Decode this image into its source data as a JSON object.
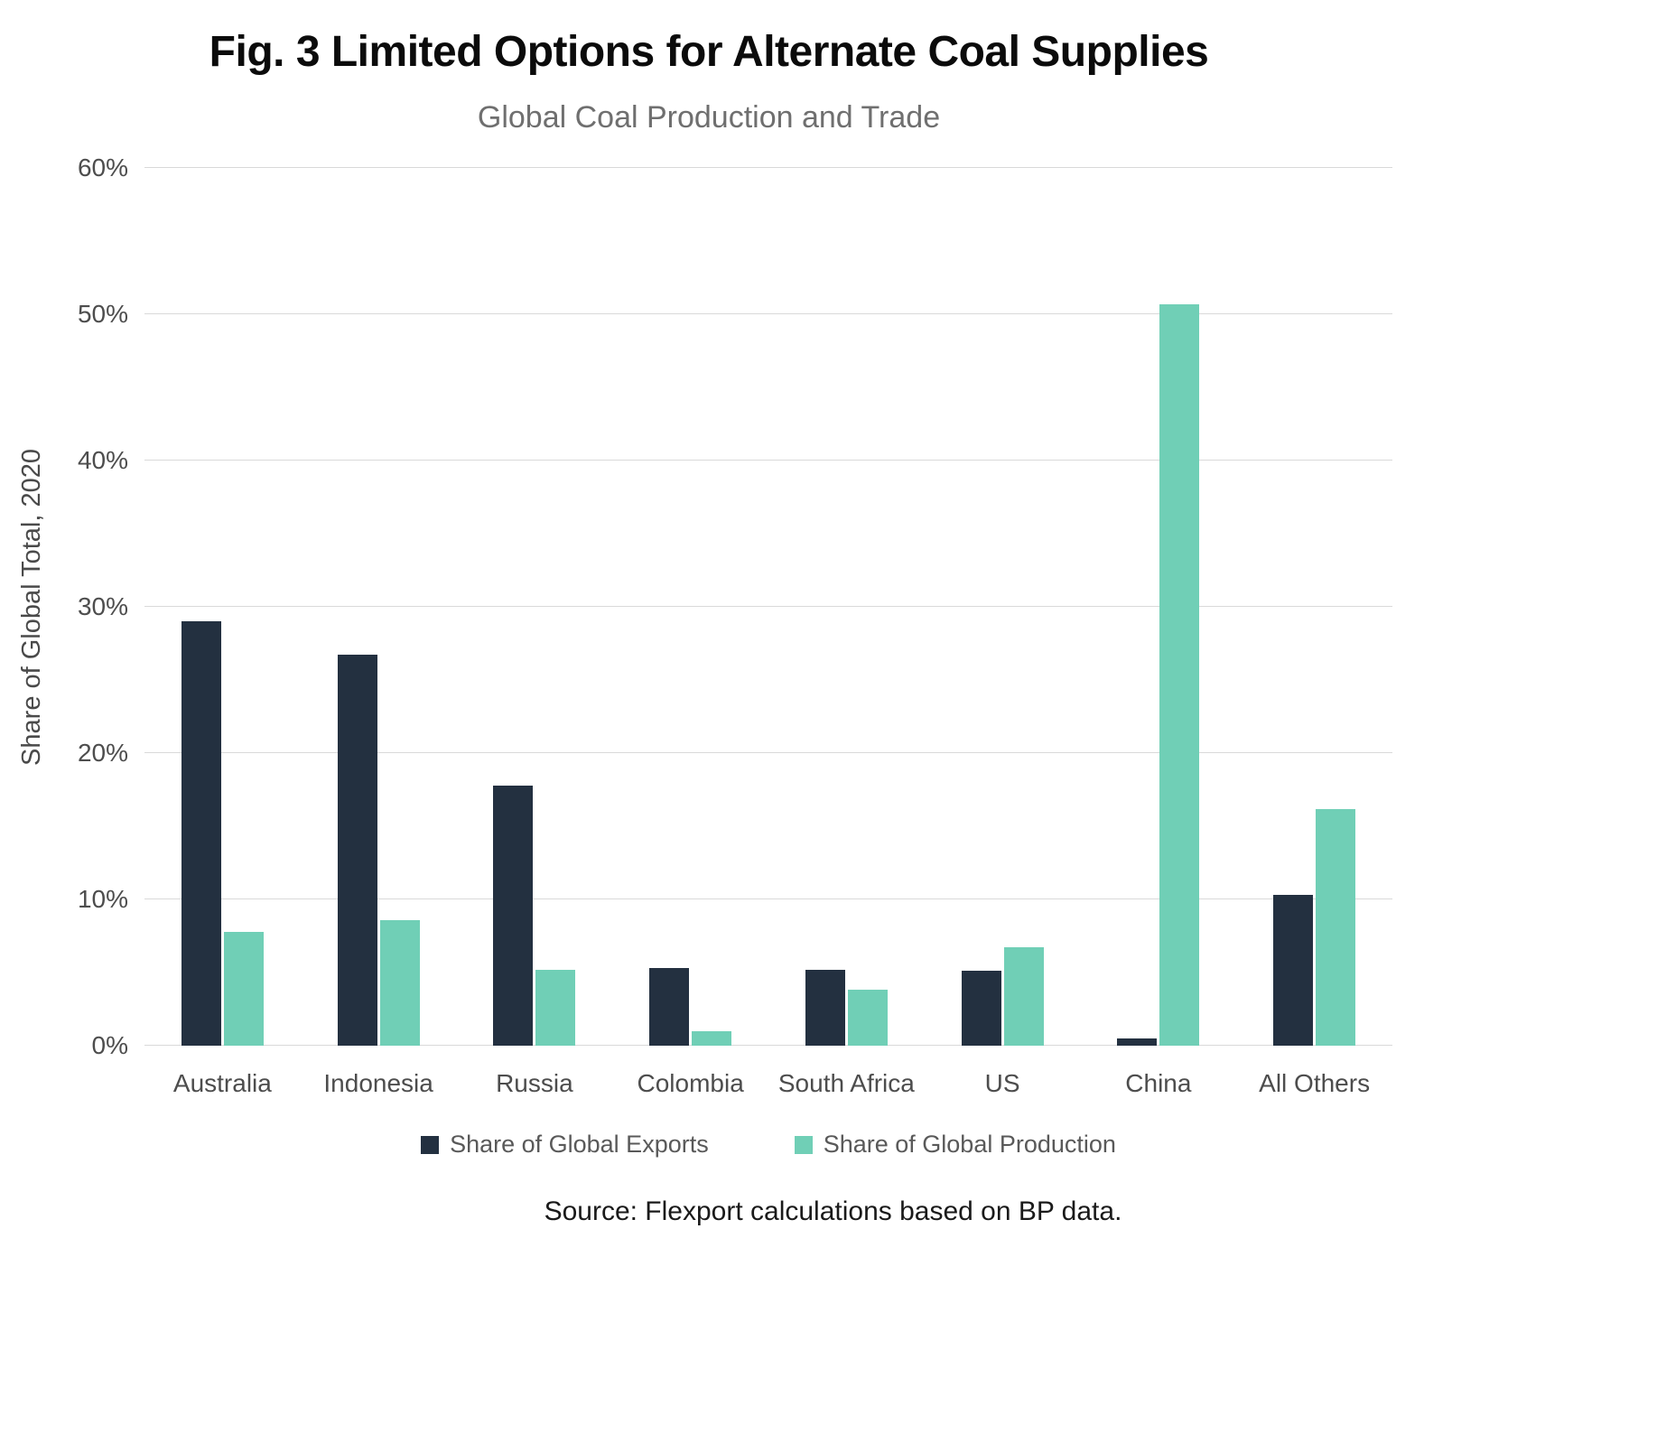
{
  "title": "Fig. 3 Limited Options for Alternate Coal Supplies",
  "source": "Source: Flexport calculations based on BP data.",
  "chart_data": {
    "type": "bar",
    "title": "Global Coal Production and Trade",
    "xlabel": "",
    "ylabel": "Share of Global Total, 2020",
    "ylim": [
      0,
      60
    ],
    "ytick_labels": [
      "0%",
      "10%",
      "20%",
      "30%",
      "40%",
      "50%",
      "60%"
    ],
    "grid": true,
    "legend_position": "bottom",
    "categories": [
      "Australia",
      "Indonesia",
      "Russia",
      "Colombia",
      "South Africa",
      "US",
      "China",
      "All Others"
    ],
    "series": [
      {
        "name": "Share of Global Exports",
        "color": "#233040",
        "values": [
          29.0,
          26.7,
          17.8,
          5.3,
          5.2,
          5.1,
          0.5,
          10.3
        ]
      },
      {
        "name": "Share of Global Production",
        "color": "#70CFB6",
        "values": [
          7.8,
          8.6,
          5.2,
          1.0,
          3.8,
          6.7,
          50.7,
          16.2
        ]
      }
    ]
  }
}
